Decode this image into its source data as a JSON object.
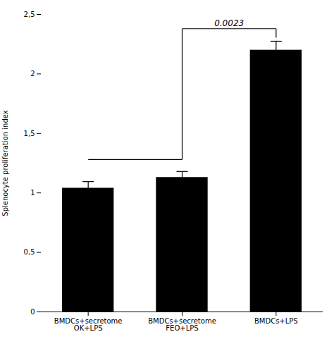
{
  "chart_data": {
    "type": "bar",
    "categories": [
      "BMDCs+secretome\nOK+LPS",
      "BMDCs+secretome\nFEO+LPS",
      "BMDCs+LPS"
    ],
    "values": [
      1.04,
      1.13,
      2.2
    ],
    "errors": [
      0.055,
      0.05,
      0.075
    ],
    "color": "#000000",
    "error_color": "#000000",
    "ylabel": "Splenocyte proliferation index",
    "ylim": [
      0,
      2.5
    ],
    "yticks": [
      0,
      {
        "value": 0.5,
        "label": "0,5"
      },
      1,
      {
        "value": 1.5,
        "label": "1,5"
      },
      2,
      {
        "value": 2.5,
        "label": "2,5"
      }
    ],
    "brackets": [
      {
        "from": 0,
        "to": 1,
        "y1": 1.28,
        "y2": 1.28
      },
      {
        "from": 1,
        "to": 1,
        "y1": 1.28,
        "y2": 2.38
      },
      {
        "from": 1,
        "to": 2,
        "y1": 2.38,
        "y2": 2.38
      },
      {
        "from": 2,
        "to": 2,
        "y1": 2.305,
        "y2": 2.38
      }
    ],
    "annotations": [
      {
        "text": "0.0023",
        "from": 1,
        "to": 2,
        "y": 2.38
      }
    ]
  }
}
